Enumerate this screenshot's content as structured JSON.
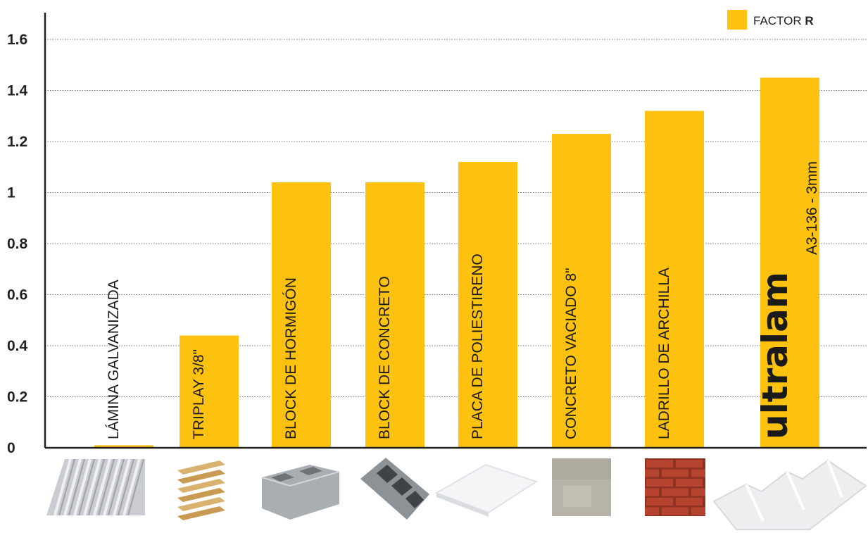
{
  "chart_data": {
    "type": "bar",
    "categories": [
      "LÁMINA GALVANIZADA",
      "TRIPLAY 3/8\"",
      "BLOCK DE HORMIGÓN",
      "BLOCK DE CONCRETO",
      "PLACA DE POLIESTIRENO",
      "CONCRETO VACIADO 8\"",
      "LADRILLO DE ARCHILLA",
      "A3-136 - 3mm"
    ],
    "values": [
      0.01,
      0.44,
      1.04,
      1.04,
      1.12,
      1.23,
      1.32,
      1.45
    ],
    "series": [
      {
        "name": "FACTOR R",
        "values": [
          0.01,
          0.44,
          1.04,
          1.04,
          1.12,
          1.23,
          1.32,
          1.45
        ]
      }
    ],
    "ylim": [
      0,
      1.6
    ],
    "yticks": [
      "0",
      "0.2",
      "0.4",
      "0.6",
      "0.8",
      "1",
      "1.2",
      "1.4",
      "1.6"
    ],
    "grid": true,
    "legend_position": "top-right",
    "title": "",
    "xlabel": "",
    "ylabel": ""
  },
  "legend": {
    "label_prefix": "FACTOR ",
    "label_bold": "R"
  },
  "brand": {
    "logo_text": "ultralam"
  },
  "colors": {
    "bar": "#FDC20F",
    "axis": "#222222",
    "grid": "#777777",
    "metal": "#c9ccd0",
    "wood": "#d8b26e",
    "concrete_block": "#a9aeb3",
    "concrete_block_dark": "#6e7378",
    "foam": "#f4f5f7",
    "cast_concrete": "#b8b3a8",
    "brick": "#b5432f",
    "ultralam_sheet": "#eceef0"
  },
  "material_images": [
    {
      "name": "galvanized-sheet-image",
      "kind": "corrugated_metal"
    },
    {
      "name": "plywood-image",
      "kind": "plywood"
    },
    {
      "name": "hollow-block-image",
      "kind": "hollow_block"
    },
    {
      "name": "concrete-block-image",
      "kind": "concrete_block"
    },
    {
      "name": "polystyrene-board-image",
      "kind": "foam_board"
    },
    {
      "name": "cast-concrete-image",
      "kind": "cast_concrete"
    },
    {
      "name": "clay-brick-image",
      "kind": "brick"
    },
    {
      "name": "ultralam-sheet-image",
      "kind": "ultralam_sheet"
    }
  ]
}
